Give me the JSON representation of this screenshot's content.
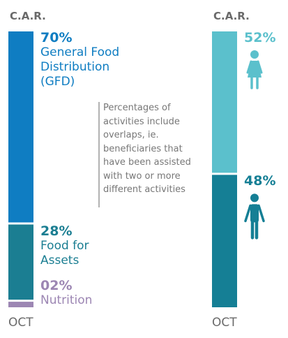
{
  "chart_data": [
    {
      "type": "stacked_bar",
      "title": "C.A.R.",
      "categories": [
        "OCT"
      ],
      "ylim": [
        0,
        100
      ],
      "annotation": "Percentages of activities include overlaps, ie. beneficiaries that have been assisted with two or more different activities",
      "series": [
        {
          "name": "General Food Distribution (GFD)",
          "color": "#0f7dc2",
          "values": [
            70
          ],
          "value_labels": [
            "70%"
          ]
        },
        {
          "name": "Food for Assets",
          "color": "#1b7e92",
          "values": [
            28
          ],
          "value_labels": [
            "28%"
          ]
        },
        {
          "name": "Nutrition",
          "color": "#9c86b3",
          "values": [
            2
          ],
          "value_labels": [
            "02%"
          ]
        }
      ]
    },
    {
      "type": "stacked_bar",
      "title": "C.A.R.",
      "categories": [
        "OCT"
      ],
      "ylim": [
        0,
        100
      ],
      "series": [
        {
          "color": "#5bc0cc",
          "values": [
            52
          ],
          "value_labels": [
            "52%"
          ]
        },
        {
          "color": "#157f95",
          "values": [
            48
          ],
          "value_labels": [
            "48%"
          ]
        }
      ]
    }
  ]
}
